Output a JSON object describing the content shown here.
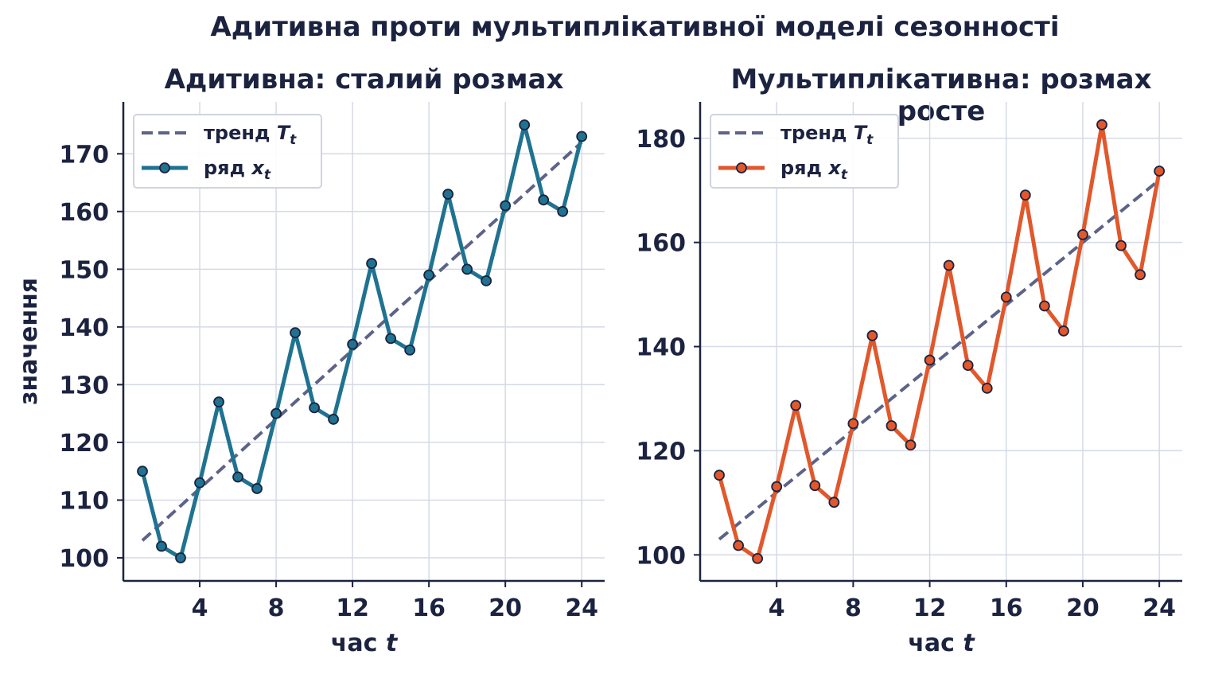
{
  "figure": {
    "title": "Адитивна проти мультиплікативної моделі сезонності"
  },
  "colors": {
    "trend": "#5d6388",
    "additive": "#1f7390",
    "multiplicative": "#e0582c",
    "marker_edge": "#1c2340",
    "grid": "#d5dae5",
    "axis": "#1c2340",
    "text": "#1c2340"
  },
  "chart_data": [
    {
      "type": "line",
      "title": "Адитивна: сталий розмах",
      "xlabel": "час t",
      "ylabel": "значення",
      "xlim": [
        0.0,
        25.2
      ],
      "ylim": [
        96,
        179
      ],
      "xticks": [
        4,
        8,
        12,
        16,
        20,
        24
      ],
      "yticks": [
        100,
        110,
        120,
        130,
        140,
        150,
        160,
        170
      ],
      "grid": true,
      "legend_position": "upper-left",
      "x": [
        1,
        2,
        3,
        4,
        5,
        6,
        7,
        8,
        9,
        10,
        11,
        12,
        13,
        14,
        15,
        16,
        17,
        18,
        19,
        20,
        21,
        22,
        23,
        24
      ],
      "series": [
        {
          "name": "тренд T_t",
          "style": "dashed",
          "color_key": "trend",
          "values": [
            103,
            106,
            109,
            112,
            115,
            118,
            121,
            124,
            127,
            130,
            133,
            136,
            139,
            142,
            145,
            148,
            151,
            154,
            157,
            160,
            163,
            166,
            169,
            172
          ]
        },
        {
          "name": "ряд x_t",
          "style": "solid-markers",
          "color_key": "additive",
          "values": [
            115,
            102,
            100,
            113,
            127,
            114,
            112,
            125,
            139,
            126,
            124,
            137,
            151,
            138,
            136,
            149,
            163,
            150,
            148,
            161,
            175,
            162,
            160,
            173
          ]
        }
      ],
      "legend": [
        {
          "label": "тренд",
          "sym": "T",
          "sub": "t"
        },
        {
          "label": "ряд",
          "sym": "x",
          "sub": "t"
        }
      ]
    },
    {
      "type": "line",
      "title": "Мультиплікативна: розмах росте",
      "xlabel": "час t",
      "ylabel": "",
      "xlim": [
        0.0,
        25.2
      ],
      "ylim": [
        95,
        187
      ],
      "xticks": [
        4,
        8,
        12,
        16,
        20,
        24
      ],
      "yticks": [
        100,
        120,
        140,
        160,
        180
      ],
      "grid": true,
      "legend_position": "upper-left",
      "x": [
        1,
        2,
        3,
        4,
        5,
        6,
        7,
        8,
        9,
        10,
        11,
        12,
        13,
        14,
        15,
        16,
        17,
        18,
        19,
        20,
        21,
        22,
        23,
        24
      ],
      "series": [
        {
          "name": "тренд T_t",
          "style": "dashed",
          "color_key": "trend",
          "values": [
            103,
            106,
            109,
            112,
            115,
            118,
            121,
            124,
            127,
            130,
            133,
            136,
            139,
            142,
            145,
            148,
            151,
            154,
            157,
            160,
            163,
            166,
            169,
            172
          ]
        },
        {
          "name": "ряд x_t",
          "style": "solid-markers",
          "color_key": "multiplicative",
          "values": [
            115.3,
            101.8,
            99.3,
            113.1,
            128.7,
            113.3,
            110.1,
            125.2,
            142.1,
            124.8,
            121.1,
            137.4,
            155.6,
            136.4,
            132.0,
            149.5,
            169.1,
            147.8,
            143.0,
            161.5,
            182.6,
            159.4,
            153.8,
            173.7
          ]
        }
      ],
      "legend": [
        {
          "label": "тренд",
          "sym": "T",
          "sub": "t"
        },
        {
          "label": "ряд",
          "sym": "x",
          "sub": "t"
        }
      ]
    }
  ]
}
